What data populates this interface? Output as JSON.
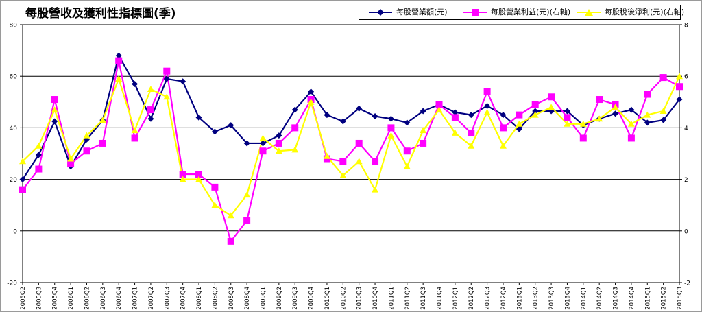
{
  "chart_data": {
    "type": "line",
    "title": "每股營收及獲利性指標圖(季)",
    "categories": [
      "2005Q2",
      "2005Q3",
      "2005Q4",
      "2006Q1",
      "2006Q2",
      "2006Q3",
      "2006Q4",
      "2007Q1",
      "2007Q2",
      "2007Q3",
      "2007Q4",
      "2008Q1",
      "2008Q2",
      "2008Q3",
      "2008Q4",
      "2009Q1",
      "2009Q2",
      "2009Q3",
      "2009Q4",
      "2010Q1",
      "2010Q2",
      "2010Q3",
      "2010Q4",
      "2011Q1",
      "2011Q2",
      "2011Q3",
      "2011Q4",
      "2012Q1",
      "2012Q2",
      "2012Q3",
      "2012Q4",
      "2013Q1",
      "2013Q2",
      "2013Q3",
      "2013Q4",
      "2014Q1",
      "2014Q2",
      "2014Q3",
      "2014Q4",
      "2015Q1",
      "2015Q2",
      "2015Q3"
    ],
    "y_left": {
      "min": -20,
      "max": 80,
      "ticks": [
        -20,
        0,
        20,
        40,
        60,
        80
      ]
    },
    "y_right": {
      "min": -2,
      "max": 8,
      "ticks": [
        -2,
        0,
        2,
        4,
        6,
        8
      ]
    },
    "gridlines": [
      0,
      20,
      40,
      60
    ],
    "legend_position": "top-right",
    "series": [
      {
        "name": "每股營業額(元)",
        "axis": "left",
        "color": "#000080",
        "marker": "diamond",
        "values": [
          20,
          29.5,
          42.5,
          25,
          35.5,
          43,
          68,
          57,
          43.5,
          59,
          58,
          44,
          38.5,
          41,
          34,
          34,
          37,
          47,
          54,
          45,
          42.5,
          47.5,
          44.5,
          43.5,
          42,
          46.5,
          49,
          46,
          45,
          48.5,
          45,
          39.5,
          46.5,
          46.5,
          46.5,
          41,
          43.5,
          45.5,
          47,
          42,
          43,
          51
        ]
      },
      {
        "name": "每股營業利益(元)(右軸)",
        "axis": "right",
        "color": "#ff00ff",
        "marker": "square",
        "values": [
          1.6,
          2.4,
          5.1,
          2.6,
          3.1,
          3.4,
          6.6,
          3.6,
          4.7,
          6.2,
          2.2,
          2.2,
          1.7,
          -0.4,
          0.4,
          3.1,
          3.4,
          4.0,
          5.1,
          2.8,
          2.7,
          3.4,
          2.7,
          4.0,
          3.1,
          3.4,
          4.9,
          4.4,
          3.8,
          5.4,
          4.0,
          4.5,
          4.9,
          5.2,
          4.4,
          3.6,
          5.1,
          4.9,
          3.6,
          5.3,
          5.95,
          5.6
        ]
      },
      {
        "name": "每股稅後淨利(元)(右軸)",
        "axis": "right",
        "color": "#ffff00",
        "marker": "triangle",
        "values": [
          2.7,
          3.3,
          4.7,
          2.8,
          3.7,
          4.3,
          5.9,
          3.9,
          5.5,
          5.2,
          2.0,
          2.0,
          1.0,
          0.6,
          1.4,
          3.6,
          3.1,
          3.15,
          5.0,
          2.9,
          2.15,
          2.7,
          1.6,
          3.7,
          2.5,
          3.9,
          4.7,
          3.8,
          3.3,
          4.6,
          3.3,
          4.15,
          4.5,
          4.8,
          4.15,
          4.15,
          4.35,
          4.8,
          4.15,
          4.5,
          4.65,
          6.0
        ]
      }
    ]
  }
}
